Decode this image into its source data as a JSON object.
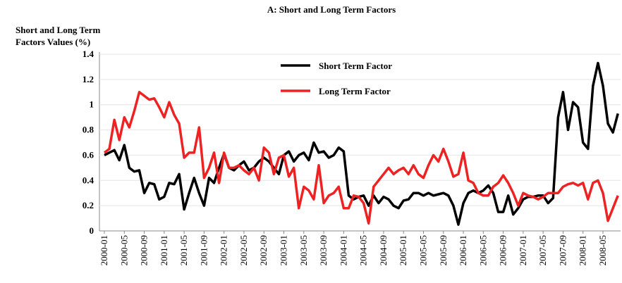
{
  "chart_data": {
    "type": "line",
    "title": "A: Short and Long Term Factors",
    "y_label": [
      "Short and Long Term",
      "Factors Values (%)"
    ],
    "categories": [
      "2000-01",
      null,
      null,
      null,
      "2000-05",
      null,
      null,
      null,
      "2000-09",
      null,
      null,
      null,
      "2001-01",
      null,
      null,
      null,
      "2001-05",
      null,
      null,
      null,
      "2001-09",
      null,
      null,
      null,
      "2002-01",
      null,
      null,
      null,
      "2002-05",
      null,
      null,
      null,
      "2002-09",
      null,
      null,
      null,
      "2003-01",
      null,
      null,
      null,
      "2003-05",
      null,
      null,
      null,
      "2003-09",
      null,
      null,
      null,
      "2004-01",
      null,
      null,
      null,
      "2004-05",
      null,
      null,
      null,
      "2004-09",
      null,
      null,
      null,
      "2005-01",
      null,
      null,
      null,
      "2005-05",
      null,
      null,
      null,
      "2005-09",
      null,
      null,
      null,
      "2006-01",
      null,
      null,
      null,
      "2006-05",
      null,
      null,
      null,
      "2006-09",
      null,
      null,
      null,
      "2007-01",
      null,
      null,
      null,
      "2007-05",
      null,
      null,
      null,
      "2007-09",
      null,
      null,
      null,
      "2008-01",
      null,
      null,
      null,
      "2008-05",
      null,
      null,
      null
    ],
    "series": [
      {
        "name": "Short Term Factor",
        "color": "#000000",
        "values": [
          0.6,
          0.62,
          0.64,
          0.56,
          0.68,
          0.5,
          0.47,
          0.48,
          0.3,
          0.38,
          0.37,
          0.25,
          0.27,
          0.38,
          0.37,
          0.45,
          0.17,
          0.3,
          0.42,
          0.3,
          0.2,
          0.42,
          0.38,
          0.5,
          0.61,
          0.5,
          0.48,
          0.52,
          0.55,
          0.48,
          0.5,
          0.55,
          0.58,
          0.55,
          0.5,
          0.45,
          0.6,
          0.63,
          0.55,
          0.6,
          0.62,
          0.56,
          0.7,
          0.62,
          0.63,
          0.58,
          0.6,
          0.66,
          0.63,
          0.28,
          0.25,
          0.27,
          0.28,
          0.2,
          0.28,
          0.22,
          0.27,
          0.25,
          0.2,
          0.18,
          0.24,
          0.25,
          0.3,
          0.3,
          0.28,
          0.3,
          0.28,
          0.29,
          0.3,
          0.28,
          0.2,
          0.05,
          0.22,
          0.3,
          0.32,
          0.3,
          0.32,
          0.36,
          0.3,
          0.15,
          0.15,
          0.28,
          0.13,
          0.18,
          0.25,
          0.27,
          0.27,
          0.28,
          0.28,
          0.22,
          0.26,
          0.9,
          1.1,
          0.8,
          1.02,
          0.98,
          0.7,
          0.65,
          1.15,
          1.33,
          1.15,
          0.85,
          0.78,
          0.93
        ]
      },
      {
        "name": "Long Term Factor",
        "color": "#ee2222",
        "values": [
          0.62,
          0.65,
          0.88,
          0.72,
          0.9,
          0.82,
          0.95,
          1.1,
          1.07,
          1.04,
          1.05,
          0.98,
          0.9,
          1.02,
          0.92,
          0.85,
          0.58,
          0.62,
          0.62,
          0.82,
          0.42,
          0.5,
          0.62,
          0.38,
          0.62,
          0.5,
          0.5,
          0.52,
          0.48,
          0.45,
          0.5,
          0.4,
          0.66,
          0.62,
          0.45,
          0.58,
          0.6,
          0.43,
          0.5,
          0.18,
          0.35,
          0.32,
          0.25,
          0.52,
          0.22,
          0.28,
          0.3,
          0.35,
          0.18,
          0.18,
          0.28,
          0.27,
          0.22,
          0.06,
          0.35,
          0.4,
          0.45,
          0.5,
          0.45,
          0.48,
          0.5,
          0.45,
          0.52,
          0.45,
          0.42,
          0.52,
          0.6,
          0.55,
          0.65,
          0.55,
          0.43,
          0.45,
          0.62,
          0.4,
          0.38,
          0.3,
          0.28,
          0.28,
          0.35,
          0.38,
          0.44,
          0.38,
          0.3,
          0.2,
          0.3,
          0.28,
          0.27,
          0.25,
          0.27,
          0.3,
          0.3,
          0.3,
          0.35,
          0.37,
          0.38,
          0.36,
          0.38,
          0.25,
          0.38,
          0.4,
          0.3,
          0.08,
          0.18,
          0.28
        ]
      }
    ],
    "ylim": [
      0,
      1.4
    ],
    "yticks": [
      0,
      0.2,
      0.4,
      0.6,
      0.8,
      1,
      1.2,
      1.4
    ],
    "grid": true
  }
}
